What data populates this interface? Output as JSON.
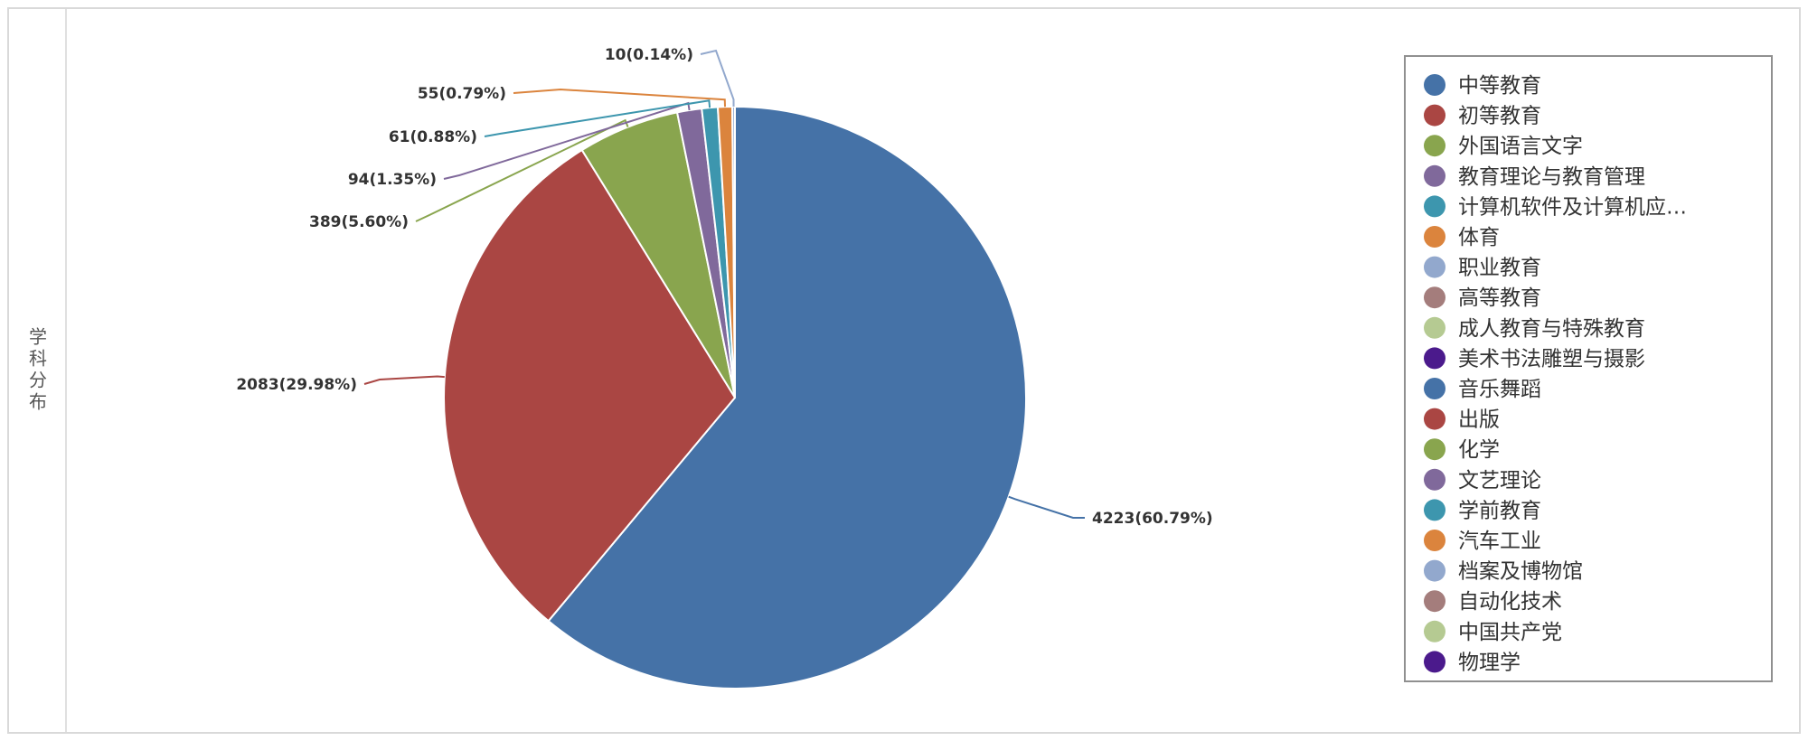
{
  "panel": {
    "side_label": "学科分布"
  },
  "chart_data": {
    "type": "pie",
    "title": "",
    "legend_position": "right",
    "slices": [
      {
        "name": "中等教育",
        "value": 4223,
        "label": "4223(60.79%)",
        "color": "#4572a7"
      },
      {
        "name": "初等教育",
        "value": 2083,
        "label": "2083(29.98%)",
        "color": "#aa4643"
      },
      {
        "name": "外国语言文字",
        "value": 389,
        "label": "389(5.60%)",
        "color": "#89a54e"
      },
      {
        "name": "教育理论与教育管理",
        "value": 94,
        "label": "94(1.35%)",
        "color": "#80699b"
      },
      {
        "name": "计算机软件及计算机应…",
        "value": 61,
        "label": "61(0.88%)",
        "color": "#3d96ae"
      },
      {
        "name": "体育",
        "value": 55,
        "label": "55(0.79%)",
        "color": "#db843d"
      },
      {
        "name": "职业教育",
        "value": 10,
        "label": "10(0.14%)",
        "color": "#92a8cd"
      }
    ],
    "legend": [
      {
        "name": "中等教育",
        "color": "#4572a7"
      },
      {
        "name": "初等教育",
        "color": "#aa4643"
      },
      {
        "name": "外国语言文字",
        "color": "#89a54e"
      },
      {
        "name": "教育理论与教育管理",
        "color": "#80699b"
      },
      {
        "name": "计算机软件及计算机应…",
        "color": "#3d96ae"
      },
      {
        "name": "体育",
        "color": "#db843d"
      },
      {
        "name": "职业教育",
        "color": "#92a8cd"
      },
      {
        "name": "高等教育",
        "color": "#a47d7c"
      },
      {
        "name": "成人教育与特殊教育",
        "color": "#b5ca92"
      },
      {
        "name": "美术书法雕塑与摄影",
        "color": "#4b1a8c"
      },
      {
        "name": "音乐舞蹈",
        "color": "#4572a7"
      },
      {
        "name": "出版",
        "color": "#aa4643"
      },
      {
        "name": "化学",
        "color": "#89a54e"
      },
      {
        "name": "文艺理论",
        "color": "#80699b"
      },
      {
        "name": "学前教育",
        "color": "#3d96ae"
      },
      {
        "name": "汽车工业",
        "color": "#db843d"
      },
      {
        "name": "档案及博物馆",
        "color": "#92a8cd"
      },
      {
        "name": "自动化技术",
        "color": "#a47d7c"
      },
      {
        "name": "中国共产党",
        "color": "#b5ca92"
      },
      {
        "name": "物理学",
        "color": "#4b1a8c"
      }
    ]
  }
}
